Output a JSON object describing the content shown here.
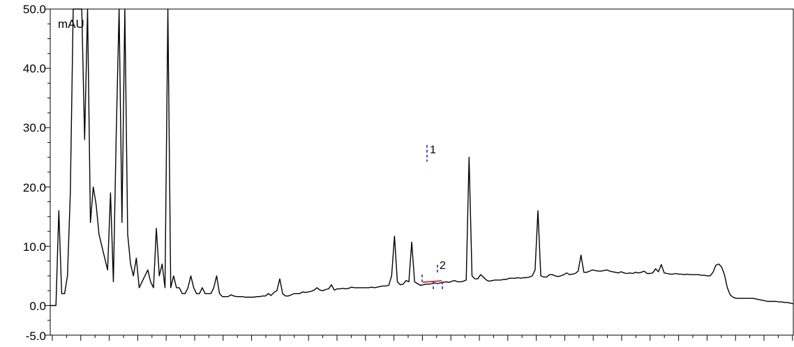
{
  "chart_data": {
    "type": "line",
    "title": "",
    "xlabel": "",
    "ylabel": "mAU",
    "ylim": [
      -5.0,
      50.0
    ],
    "y_ticks": [
      "50.0",
      "40.0",
      "30.0",
      "20.0",
      "10.0",
      "0.0",
      "-5.0"
    ],
    "y_tick_values": [
      50,
      40,
      30,
      20,
      10,
      0,
      -5
    ],
    "x_tick_labels_visible": false,
    "grid": false,
    "series": [
      {
        "values": [
          0,
          0,
          0,
          16,
          2,
          2,
          5,
          19,
          50,
          50,
          50,
          50,
          28,
          50,
          14,
          20,
          17,
          12,
          10,
          8,
          6,
          19,
          4,
          29,
          50,
          14,
          50,
          12,
          7,
          5,
          8,
          3,
          4,
          5,
          6,
          4,
          3,
          13,
          5,
          7,
          3,
          50,
          3,
          5,
          3,
          3,
          2,
          2,
          3,
          5,
          3,
          2,
          2,
          3,
          2,
          2,
          2,
          3,
          5,
          2,
          1.5,
          1.5,
          1.5,
          1.8,
          1.6,
          1.5,
          1.5,
          1.5,
          1.4,
          1.4,
          1.4,
          1.4,
          1.5,
          1.5,
          1.6,
          1.6,
          2,
          1.7,
          2.2,
          2.5,
          4.5,
          2,
          1.6,
          1.6,
          1.8,
          2,
          2,
          2,
          2.3,
          2.2,
          2.3,
          2.4,
          2.6,
          3,
          2.6,
          2.5,
          2.7,
          2.8,
          3.5,
          2.6,
          2.8,
          2.8,
          2.9,
          2.8,
          2.9,
          3.1,
          3,
          3,
          3,
          3,
          3,
          3,
          3.1,
          3,
          3.1,
          3.2,
          3.3,
          3.3,
          3.4,
          5,
          11.7,
          4,
          3.5,
          3.6,
          4.2,
          4,
          10.7,
          4,
          3.7,
          3.4,
          3.5,
          3.6,
          3.6,
          3.7,
          3.8,
          3.7,
          3.8,
          3.9,
          4,
          3.9,
          4.1,
          4.2,
          4,
          4,
          4.1,
          4.3,
          25,
          5,
          4.5,
          4.5,
          5.2,
          4.8,
          4.3,
          4.1,
          4.2,
          4.3,
          4.3,
          4.3,
          4.4,
          4.4,
          4.6,
          4.6,
          4.6,
          4.7,
          4.6,
          4.7,
          4.7,
          4.8,
          5,
          6,
          16,
          5,
          4.8,
          4.8,
          5.2,
          5.2,
          5,
          4.9,
          5,
          5.2,
          5.5,
          5.2,
          5.3,
          5.4,
          5.8,
          8.5,
          5.6,
          5.6,
          5.8,
          6,
          5.9,
          5.8,
          5.8,
          5.9,
          6,
          5.8,
          5.7,
          5.6,
          5.5,
          5.7,
          5.5,
          5.4,
          5.5,
          5.4,
          5.6,
          5.5,
          5.6,
          5.8,
          5.4,
          5.4,
          5.5,
          6.2,
          5.7,
          6.9,
          5.5,
          5.4,
          5.3,
          5.3,
          5.4,
          5.3,
          5.3,
          5.2,
          5.3,
          5.2,
          5.2,
          5.2,
          5.2,
          5.1,
          5.1,
          5,
          5,
          5.6,
          6.8,
          7,
          6.5,
          5.2,
          3,
          1.8,
          1.4,
          1.2,
          1.2,
          1.2,
          1.2,
          1.2,
          1.2,
          1.2,
          1.1,
          1,
          0.9,
          0.8,
          0.7,
          0.7,
          0.7,
          0.7,
          0.6,
          0.6,
          0.5,
          0.5,
          0.4,
          0.3
        ]
      }
    ],
    "annotations": [
      {
        "label": "1",
        "peak_value": 25
      },
      {
        "label": "2",
        "peak_value": 5.3
      }
    ]
  }
}
